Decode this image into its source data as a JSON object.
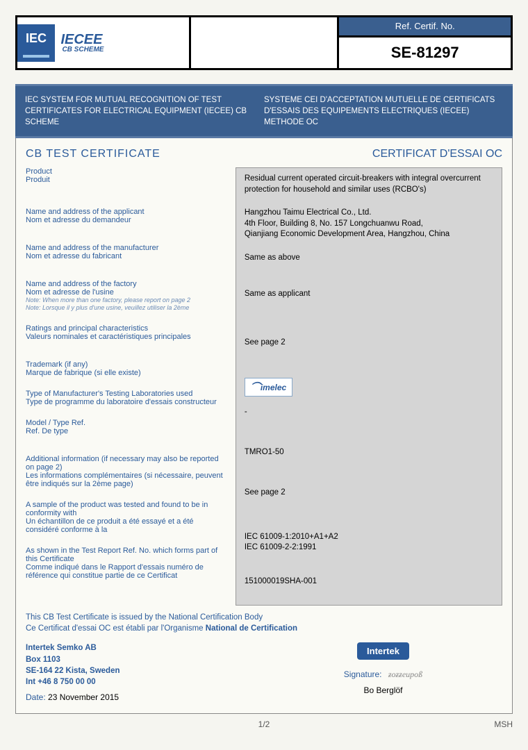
{
  "header": {
    "iec_text": "IEC",
    "iecee_text": "IECEE",
    "iecee_sub": "CB\nSCHEME",
    "ref_label": "Ref. Certif. No.",
    "ref_number": "SE-81297"
  },
  "banner": {
    "left": "IEC SYSTEM FOR MUTUAL RECOGNITION OF TEST CERTIFICATES FOR ELECTRICAL EQUIPMENT (IECEE) CB SCHEME",
    "right": "SYSTEME CEI D'ACCEPTATION MUTUELLE DE CERTIFICATS D'ESSAIS DES EQUIPEMENTS ELECTRIQUES (IECEE) METHODE OC"
  },
  "titles": {
    "left": "CB TEST CERTIFICATE",
    "right": "CERTIFICAT D'ESSAI OC"
  },
  "labels": {
    "product_en": "Product",
    "product_fr": "Produit",
    "applicant_en": "Name and address of the applicant",
    "applicant_fr": "Nom et adresse du demandeur",
    "manufacturer_en": "Name and address of the manufacturer",
    "manufacturer_fr": "Nom et adresse du fabricant",
    "factory_en": "Name and address of the factory",
    "factory_fr": "Nom et adresse de l'usine",
    "factory_note_en": "Note: When more than one factory, please report on page 2",
    "factory_note_fr": "Note: Lorsque il y plus d'une usine, veuillez utiliser la 2ème",
    "ratings_en": "Ratings and principal characteristics",
    "ratings_fr": "Valeurs nominales et caractéristiques principales",
    "trademark_en": "Trademark (if any)",
    "trademark_fr": "Marque de fabrique (si elle existe)",
    "lab_en": "Type of Manufacturer's Testing Laboratories used",
    "lab_fr": "Type de programme du laboratoire d'essais constructeur",
    "model_en": "Model / Type Ref.",
    "model_fr": "Ref. De type",
    "additional_en": "Additional information (if necessary may also be reported on page 2)",
    "additional_fr": "Les informations complémentaires (si nécessaire, peuvent être indiqués sur la 2ème page)",
    "conformity_en": "A sample of the product was tested and found to be in conformity with",
    "conformity_fr": "Un échantillon de ce produit a été essayé et a été considéré conforme à la",
    "report_en": "As shown in the Test Report Ref. No. which forms part of this Certificate",
    "report_fr": "Comme indiqué dans le Rapport d'essais numéro de référence qui constitue partie de ce Certificat"
  },
  "values": {
    "product": "Residual current operated circuit-breakers with integral overcurrent protection for household and similar uses (RCBO's)",
    "applicant_line1": "Hangzhou Taimu Electrical Co., Ltd.",
    "applicant_line2": "4th Floor, Building 8, No. 157 Longchuanwu Road,",
    "applicant_line3": "Qianjiang Economic Development Area, Hangzhou, China",
    "manufacturer": "Same as above",
    "factory": "Same as applicant",
    "ratings": "See page 2",
    "trademark_text": "imelec",
    "lab": "-",
    "model": "TMRO1-50",
    "additional": "See page 2",
    "conformity_line1": "IEC 61009-1:2010+A1+A2",
    "conformity_line2": "IEC 61009-2-2:1991",
    "report": "151000019SHA-001"
  },
  "footer": {
    "issued_en": "This CB Test Certificate is issued by the National Certification Body",
    "issued_fr": "Ce Certificat d'essai OC est établi par l'Organisme",
    "issued_fr_bold": "National de Certification",
    "issuer_name": "Intertek Semko AB",
    "issuer_box": "Box 1103",
    "issuer_city": "SE-164 22 Kista, Sweden",
    "issuer_phone": "Int +46 8 750 00 00",
    "date_label": "Date:",
    "date_value": "23 November 2015",
    "intertek_badge": "Intertek",
    "signature_label": "Signature:",
    "signer": "Bo Berglöf",
    "page": "1/2",
    "msh": "MSH"
  }
}
